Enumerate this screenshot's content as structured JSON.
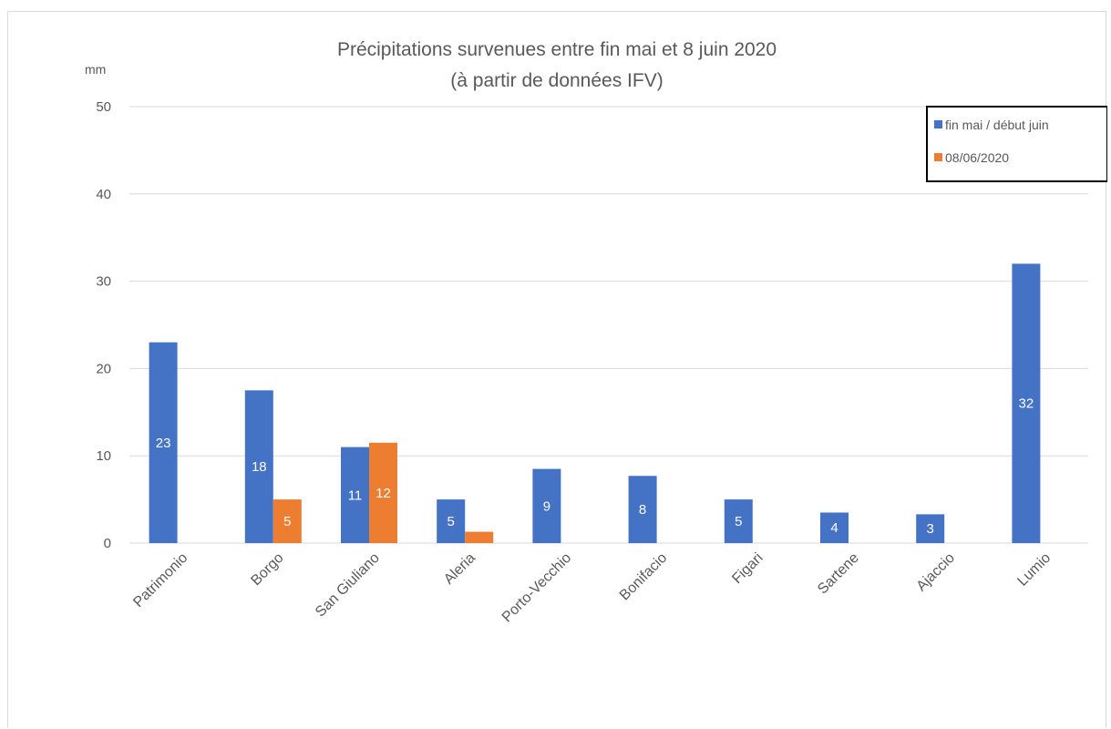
{
  "chart_data": {
    "type": "bar",
    "title": "Précipitations survenues entre fin mai et 8 juin 2020",
    "subtitle": "(à partir de données IFV)",
    "ylabel": "mm",
    "xlabel": "",
    "ylim": [
      0,
      50
    ],
    "yticks": [
      0,
      10,
      20,
      30,
      40,
      50
    ],
    "grid": true,
    "legend_position": "top-right",
    "categories": [
      "Patrimonio",
      "Borgo",
      "San Giuliano",
      "Aleria",
      "Porto-Vecchio",
      "Bonifacio",
      "Figari",
      "Sartene",
      "Ajaccio",
      "Lumio"
    ],
    "series": [
      {
        "name": "fin mai / début juin",
        "color": "#4472c4",
        "values": [
          23,
          17.5,
          11,
          5,
          8.5,
          7.7,
          5,
          3.5,
          3.3,
          32
        ],
        "labels": [
          "23",
          "18",
          "11",
          "5",
          "9",
          "8",
          "5",
          "4",
          "3",
          "32"
        ]
      },
      {
        "name": "08/06/2020",
        "color": "#ed7d31",
        "values": [
          null,
          5,
          11.5,
          1.3,
          null,
          null,
          null,
          null,
          null,
          null
        ],
        "labels": [
          null,
          "5",
          "12",
          null,
          null,
          null,
          null,
          null,
          null,
          null
        ]
      }
    ]
  }
}
